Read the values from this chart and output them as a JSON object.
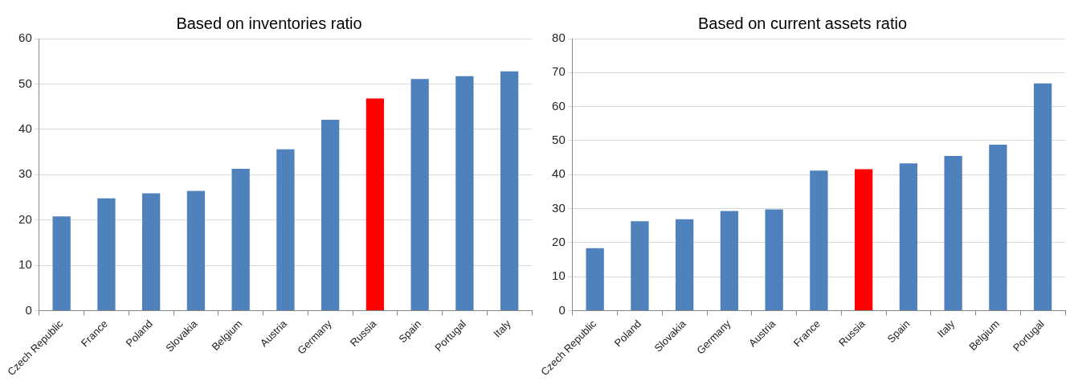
{
  "chart_data": [
    {
      "type": "bar",
      "title": "Based on inventories ratio",
      "categories": [
        "Czech Republic",
        "France",
        "Poland",
        "Slovakia",
        "Belgium",
        "Austria",
        "Germany",
        "Russia",
        "Spain",
        "Portugal",
        "Italy"
      ],
      "values": [
        20.8,
        24.8,
        25.9,
        26.4,
        31.3,
        35.6,
        42.1,
        46.8,
        51.1,
        51.7,
        52.8
      ],
      "colors": [
        "#4f81bd",
        "#4f81bd",
        "#4f81bd",
        "#4f81bd",
        "#4f81bd",
        "#4f81bd",
        "#4f81bd",
        "#ff0000",
        "#4f81bd",
        "#4f81bd",
        "#4f81bd"
      ],
      "ylim": [
        0,
        60
      ],
      "yticks": [
        0,
        10,
        20,
        30,
        40,
        50,
        60
      ],
      "grid": "y",
      "legend": false
    },
    {
      "type": "bar",
      "title": "Based on current assets ratio",
      "categories": [
        "Czech Republic",
        "Poland",
        "Slovakia",
        "Germany",
        "Austria",
        "France",
        "Russia",
        "Spain",
        "Italy",
        "Belgium",
        "Portugal"
      ],
      "values": [
        18.4,
        26.3,
        26.9,
        29.3,
        29.8,
        41.2,
        41.6,
        43.3,
        45.5,
        48.8,
        66.8
      ],
      "colors": [
        "#4f81bd",
        "#4f81bd",
        "#4f81bd",
        "#4f81bd",
        "#4f81bd",
        "#4f81bd",
        "#ff0000",
        "#4f81bd",
        "#4f81bd",
        "#4f81bd",
        "#4f81bd"
      ],
      "ylim": [
        0,
        80
      ],
      "yticks": [
        0,
        10,
        20,
        30,
        40,
        50,
        60,
        70,
        80
      ],
      "grid": "y",
      "legend": false
    }
  ]
}
